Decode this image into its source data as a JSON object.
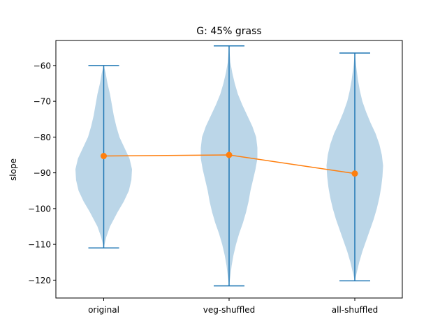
{
  "chart_data": {
    "type": "violin",
    "title": "G: 45% grass",
    "xlabel": "",
    "ylabel": "slope",
    "categories": [
      "original",
      "veg-shuffled",
      "all-shuffled"
    ],
    "ylim": [
      -125,
      -53
    ],
    "yticks": [
      -60,
      -70,
      -80,
      -90,
      -100,
      -110,
      -120
    ],
    "grid": false,
    "violins": [
      {
        "category": "original",
        "min": -111,
        "max": -60,
        "mean": -85.3,
        "profile": [
          [
            -111,
            0.0
          ],
          [
            -108,
            0.04
          ],
          [
            -105,
            0.1
          ],
          [
            -101,
            0.22
          ],
          [
            -98,
            0.32
          ],
          [
            -95,
            0.4
          ],
          [
            -92,
            0.44
          ],
          [
            -89,
            0.45
          ],
          [
            -86,
            0.41
          ],
          [
            -83,
            0.33
          ],
          [
            -80,
            0.25
          ],
          [
            -77,
            0.2
          ],
          [
            -74,
            0.16
          ],
          [
            -71,
            0.13
          ],
          [
            -68,
            0.1
          ],
          [
            -65,
            0.06
          ],
          [
            -62,
            0.03
          ],
          [
            -60,
            0.0
          ]
        ]
      },
      {
        "category": "veg-shuffled",
        "min": -121.6,
        "max": -54.5,
        "mean": -85.0,
        "profile": [
          [
            -121.6,
            0.0
          ],
          [
            -119,
            0.02
          ],
          [
            -116,
            0.04
          ],
          [
            -113,
            0.07
          ],
          [
            -110,
            0.11
          ],
          [
            -107,
            0.16
          ],
          [
            -104,
            0.22
          ],
          [
            -101,
            0.27
          ],
          [
            -98,
            0.31
          ],
          [
            -95,
            0.34
          ],
          [
            -92,
            0.38
          ],
          [
            -89,
            0.42
          ],
          [
            -86,
            0.45
          ],
          [
            -83,
            0.45
          ],
          [
            -80,
            0.43
          ],
          [
            -77,
            0.37
          ],
          [
            -74,
            0.29
          ],
          [
            -71,
            0.21
          ],
          [
            -68,
            0.14
          ],
          [
            -65,
            0.09
          ],
          [
            -62,
            0.05
          ],
          [
            -59,
            0.02
          ],
          [
            -54.5,
            0.0
          ]
        ]
      },
      {
        "category": "all-shuffled",
        "min": -120.2,
        "max": -56.5,
        "mean": -90.2,
        "profile": [
          [
            -120.2,
            0.0
          ],
          [
            -118,
            0.03
          ],
          [
            -115,
            0.07
          ],
          [
            -112,
            0.12
          ],
          [
            -109,
            0.18
          ],
          [
            -106,
            0.24
          ],
          [
            -103,
            0.3
          ],
          [
            -100,
            0.35
          ],
          [
            -97,
            0.39
          ],
          [
            -94,
            0.42
          ],
          [
            -91,
            0.44
          ],
          [
            -88,
            0.45
          ],
          [
            -85,
            0.43
          ],
          [
            -82,
            0.39
          ],
          [
            -79,
            0.33
          ],
          [
            -76,
            0.25
          ],
          [
            -73,
            0.18
          ],
          [
            -70,
            0.12
          ],
          [
            -67,
            0.08
          ],
          [
            -64,
            0.05
          ],
          [
            -60,
            0.02
          ],
          [
            -56.5,
            0.0
          ]
        ]
      }
    ],
    "mean_line": {
      "values": [
        -85.3,
        -85.0,
        -90.2
      ]
    },
    "colors": {
      "violin_fill": "#1f77b4",
      "violin_fill_opacity": 0.3,
      "bar": "#1f77b4",
      "mean_line": "#ff7f0e",
      "axes": "#000000"
    }
  }
}
